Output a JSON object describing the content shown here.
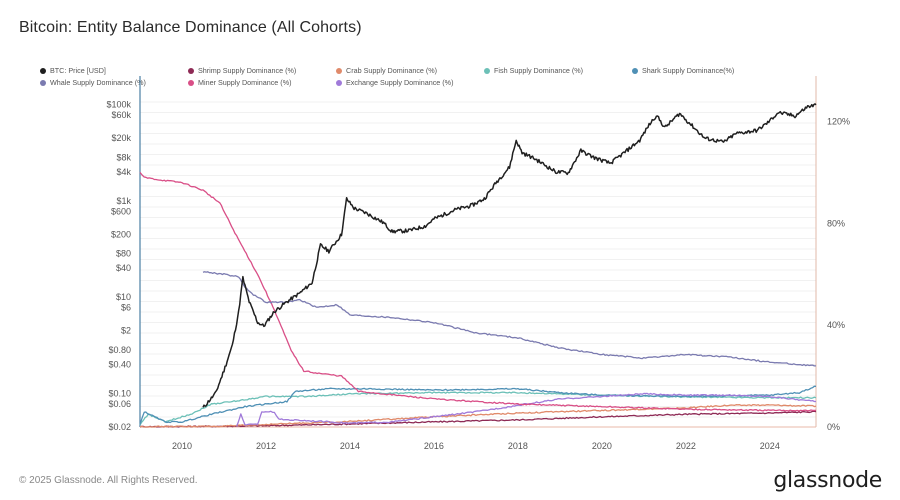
{
  "header": {
    "title": "Bitcoin: Entity Balance Dominance (All Cohorts)"
  },
  "footer": {
    "copyright": "© 2025 Glassnode. All Rights Reserved.",
    "brand": "glassnode"
  },
  "chart_data": {
    "type": "line",
    "title": "Bitcoin: Entity Balance Dominance (All Cohorts)",
    "legend_position": "top",
    "x_axis": {
      "range": [
        2009.0,
        2025.1
      ],
      "ticks": [
        "2010",
        "2012",
        "2014",
        "2016",
        "2018",
        "2020",
        "2022",
        "2024"
      ]
    },
    "y_left": {
      "scale": "log",
      "range": [
        0.02,
        150000
      ],
      "ticks": [
        {
          "value": 100000,
          "label": "$100k"
        },
        {
          "value": 60000,
          "label": "$60k"
        },
        {
          "value": 20000,
          "label": "$20k"
        },
        {
          "value": 8000,
          "label": "$8k"
        },
        {
          "value": 4000,
          "label": "$4k"
        },
        {
          "value": 1000,
          "label": "$1k"
        },
        {
          "value": 600,
          "label": "$600"
        },
        {
          "value": 200,
          "label": "$200"
        },
        {
          "value": 80,
          "label": "$80"
        },
        {
          "value": 40,
          "label": "$40"
        },
        {
          "value": 10,
          "label": "$10"
        },
        {
          "value": 6,
          "label": "$6"
        },
        {
          "value": 2,
          "label": "$2"
        },
        {
          "value": 0.8,
          "label": "$0.80"
        },
        {
          "value": 0.4,
          "label": "$0.40"
        },
        {
          "value": 0.1,
          "label": "$0.10"
        },
        {
          "value": 0.06,
          "label": "$0.06"
        },
        {
          "value": 0.02,
          "label": "$0.02"
        }
      ]
    },
    "y_right": {
      "scale": "linear",
      "range": [
        0,
        130
      ],
      "ticks": [
        {
          "value": 0,
          "label": "0%"
        },
        {
          "value": 40,
          "label": "40%"
        },
        {
          "value": 80,
          "label": "80%"
        },
        {
          "value": 120,
          "label": "120%"
        }
      ]
    },
    "series": [
      {
        "name": "BTC: Price [USD]",
        "axis": "left",
        "color": "#1f1f1f",
        "points": [
          [
            2010.5,
            0.05
          ],
          [
            2010.8,
            0.1
          ],
          [
            2011.0,
            0.3
          ],
          [
            2011.2,
            1
          ],
          [
            2011.35,
            5
          ],
          [
            2011.45,
            25
          ],
          [
            2011.6,
            8
          ],
          [
            2011.8,
            3
          ],
          [
            2011.95,
            2.5
          ],
          [
            2012.2,
            5
          ],
          [
            2012.5,
            8
          ],
          [
            2012.8,
            12
          ],
          [
            2013.1,
            20
          ],
          [
            2013.3,
            120
          ],
          [
            2013.5,
            90
          ],
          [
            2013.8,
            200
          ],
          [
            2013.92,
            1100
          ],
          [
            2014.1,
            700
          ],
          [
            2014.4,
            550
          ],
          [
            2014.8,
            350
          ],
          [
            2015.0,
            230
          ],
          [
            2015.4,
            240
          ],
          [
            2015.8,
            300
          ],
          [
            2016.0,
            420
          ],
          [
            2016.5,
            650
          ],
          [
            2016.9,
            800
          ],
          [
            2017.2,
            1100
          ],
          [
            2017.5,
            2500
          ],
          [
            2017.8,
            5000
          ],
          [
            2017.96,
            18000
          ],
          [
            2018.1,
            10000
          ],
          [
            2018.4,
            7500
          ],
          [
            2018.9,
            4000
          ],
          [
            2019.2,
            3800
          ],
          [
            2019.5,
            11000
          ],
          [
            2019.8,
            8000
          ],
          [
            2020.2,
            6000
          ],
          [
            2020.5,
            9500
          ],
          [
            2020.9,
            18000
          ],
          [
            2021.1,
            35000
          ],
          [
            2021.3,
            60000
          ],
          [
            2021.5,
            33000
          ],
          [
            2021.85,
            65000
          ],
          [
            2022.1,
            40000
          ],
          [
            2022.45,
            20000
          ],
          [
            2022.9,
            16500
          ],
          [
            2023.2,
            25000
          ],
          [
            2023.7,
            29000
          ],
          [
            2023.95,
            42000
          ],
          [
            2024.2,
            68000
          ],
          [
            2024.6,
            58000
          ],
          [
            2024.9,
            90000
          ],
          [
            2025.1,
            98000
          ]
        ]
      },
      {
        "name": "Shrimp Supply Dominance (%)",
        "axis": "right",
        "color": "#8e2a55",
        "points": [
          [
            2009.0,
            0.1
          ],
          [
            2011,
            0.3
          ],
          [
            2012,
            0.5
          ],
          [
            2014,
            1.2
          ],
          [
            2016,
            2.0
          ],
          [
            2018,
            2.8
          ],
          [
            2020,
            4.0
          ],
          [
            2022,
            5.0
          ],
          [
            2024,
            5.5
          ],
          [
            2025.1,
            6.0
          ]
        ]
      },
      {
        "name": "Crab Supply Dominance (%)",
        "axis": "right",
        "color": "#e08a6a",
        "points": [
          [
            2009.0,
            0.1
          ],
          [
            2011,
            0.3
          ],
          [
            2012,
            1.0
          ],
          [
            2014,
            2.2
          ],
          [
            2016,
            4.0
          ],
          [
            2018,
            5.5
          ],
          [
            2020,
            6.5
          ],
          [
            2022,
            7.5
          ],
          [
            2023,
            8.5
          ],
          [
            2024,
            8.6
          ],
          [
            2025.1,
            8.2
          ]
        ]
      },
      {
        "name": "Fish Supply Dominance (%)",
        "axis": "right",
        "color": "#6cc0b7",
        "points": [
          [
            2009.0,
            1
          ],
          [
            2009.2,
            5
          ],
          [
            2009.6,
            2
          ],
          [
            2010.2,
            5
          ],
          [
            2010.7,
            9
          ],
          [
            2011.2,
            10
          ],
          [
            2012,
            12
          ],
          [
            2013,
            12
          ],
          [
            2014,
            13
          ],
          [
            2016,
            13.5
          ],
          [
            2018,
            13.5
          ],
          [
            2020,
            12.5
          ],
          [
            2022,
            11.8
          ],
          [
            2024,
            11.5
          ],
          [
            2025.1,
            11.5
          ]
        ]
      },
      {
        "name": "Shark Supply Dominance(%)",
        "axis": "right",
        "color": "#4f90b5",
        "points": [
          [
            2009.0,
            1
          ],
          [
            2009.1,
            6
          ],
          [
            2009.6,
            2
          ],
          [
            2010,
            2
          ],
          [
            2010.7,
            5
          ],
          [
            2011.5,
            8
          ],
          [
            2012.5,
            10
          ],
          [
            2012.7,
            14
          ],
          [
            2013.5,
            15
          ],
          [
            2014.5,
            15
          ],
          [
            2016,
            14.5
          ],
          [
            2018,
            15
          ],
          [
            2019,
            13.5
          ],
          [
            2020,
            12.5
          ],
          [
            2022,
            12
          ],
          [
            2024,
            12.5
          ],
          [
            2024.7,
            13.5
          ],
          [
            2025.1,
            16
          ]
        ]
      },
      {
        "name": "Whale Supply Dominance (%)",
        "axis": "right",
        "color": "#7b7bb0",
        "points": [
          [
            2010.5,
            61
          ],
          [
            2011.0,
            60
          ],
          [
            2011.35,
            59
          ],
          [
            2011.5,
            55
          ],
          [
            2011.7,
            52
          ],
          [
            2012.0,
            49
          ],
          [
            2012.5,
            49
          ],
          [
            2012.8,
            50
          ],
          [
            2013.2,
            47
          ],
          [
            2013.7,
            48
          ],
          [
            2014.0,
            44
          ],
          [
            2015,
            43
          ],
          [
            2016,
            41
          ],
          [
            2017,
            37
          ],
          [
            2018,
            35
          ],
          [
            2018.5,
            33
          ],
          [
            2019,
            31
          ],
          [
            2020,
            28.5
          ],
          [
            2021,
            27
          ],
          [
            2022,
            28.5
          ],
          [
            2023,
            27.5
          ],
          [
            2024,
            25.5
          ],
          [
            2025.1,
            24
          ]
        ]
      },
      {
        "name": "Miner Supply Dominance (%)",
        "axis": "right",
        "color": "#d94f87",
        "points": [
          [
            2009.0,
            100
          ],
          [
            2009.1,
            98
          ],
          [
            2009.5,
            97
          ],
          [
            2010.0,
            96
          ],
          [
            2010.5,
            93
          ],
          [
            2010.9,
            88
          ],
          [
            2011.3,
            75
          ],
          [
            2011.8,
            60
          ],
          [
            2012.2,
            46
          ],
          [
            2012.6,
            30
          ],
          [
            2012.9,
            22
          ],
          [
            2013.3,
            21
          ],
          [
            2013.8,
            20
          ],
          [
            2014.2,
            14
          ],
          [
            2016,
            11
          ],
          [
            2018,
            9
          ],
          [
            2020,
            8
          ],
          [
            2022,
            7
          ],
          [
            2024,
            6.5
          ],
          [
            2025.1,
            6.5
          ]
        ]
      },
      {
        "name": "Exchange Supply Dominance (%)",
        "axis": "right",
        "color": "#a07ad9",
        "points": [
          [
            2011.3,
            0
          ],
          [
            2011.4,
            5
          ],
          [
            2011.5,
            1
          ],
          [
            2011.8,
            1
          ],
          [
            2011.9,
            6
          ],
          [
            2012.2,
            6
          ],
          [
            2012.3,
            3
          ],
          [
            2013,
            2.5
          ],
          [
            2014,
            1.5
          ],
          [
            2015,
            2
          ],
          [
            2016,
            4
          ],
          [
            2017,
            6
          ],
          [
            2018,
            8.5
          ],
          [
            2019,
            11
          ],
          [
            2020,
            12
          ],
          [
            2021,
            13
          ],
          [
            2022,
            12.5
          ],
          [
            2023,
            12.5
          ],
          [
            2024,
            12
          ],
          [
            2025.1,
            10
          ]
        ]
      }
    ]
  }
}
